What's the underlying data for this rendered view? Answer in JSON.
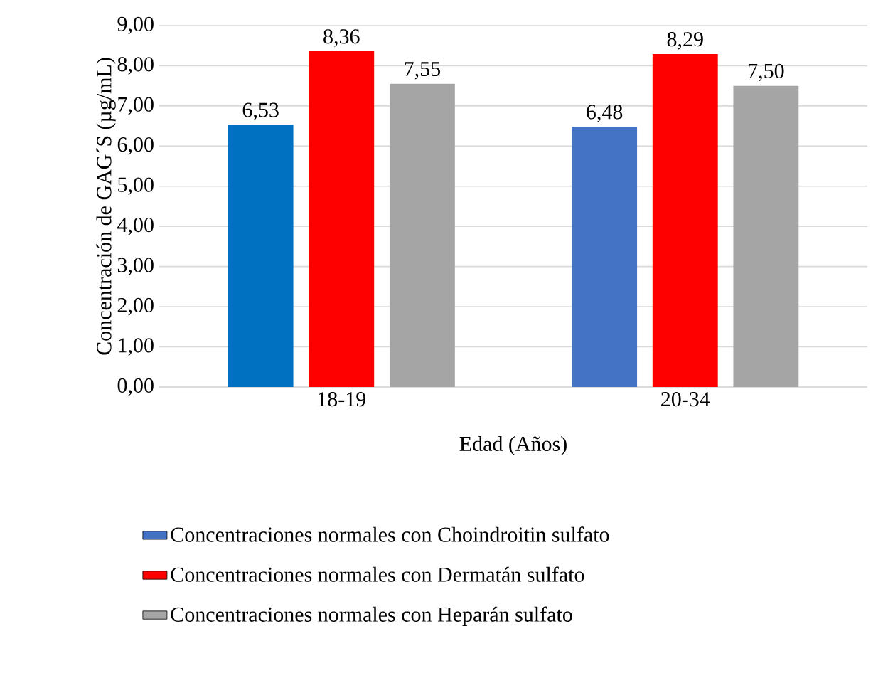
{
  "chart_data": {
    "type": "bar",
    "categories": [
      "18-19",
      "20-34"
    ],
    "xlabel": "Edad (Años)",
    "ylabel": "Concentración de GAG´S (µg/mL)",
    "series": [
      {
        "name": "Concentraciones normales con Choindroitin sulfato",
        "color": "#4472c4",
        "colors": [
          "#0070c0",
          "#4472c4"
        ],
        "values": [
          6.53,
          6.48
        ],
        "value_labels": [
          "6,53",
          "6,48"
        ]
      },
      {
        "name": "Concentraciones normales con Dermatán sulfato",
        "color": "#ff0000",
        "values": [
          8.36,
          8.29
        ],
        "value_labels": [
          "8,36",
          "8,29"
        ]
      },
      {
        "name": "Concentraciones normales con Heparán sulfato",
        "color": "#a5a5a5",
        "values": [
          7.55,
          7.5
        ],
        "value_labels": [
          "7,55",
          "7,50"
        ]
      }
    ],
    "ylim": [
      0,
      9
    ],
    "yticks": [
      {
        "value": 0,
        "label": "0,00"
      },
      {
        "value": 1,
        "label": "1,00"
      },
      {
        "value": 2,
        "label": "2,00"
      },
      {
        "value": 3,
        "label": "3,00"
      },
      {
        "value": 4,
        "label": "4,00"
      },
      {
        "value": 5,
        "label": "5,00"
      },
      {
        "value": 6,
        "label": "6,00"
      },
      {
        "value": 7,
        "label": "7,00"
      },
      {
        "value": 8,
        "label": "8,00"
      },
      {
        "value": 9,
        "label": "9,00"
      }
    ],
    "grid": "y",
    "legend": "bottom"
  }
}
